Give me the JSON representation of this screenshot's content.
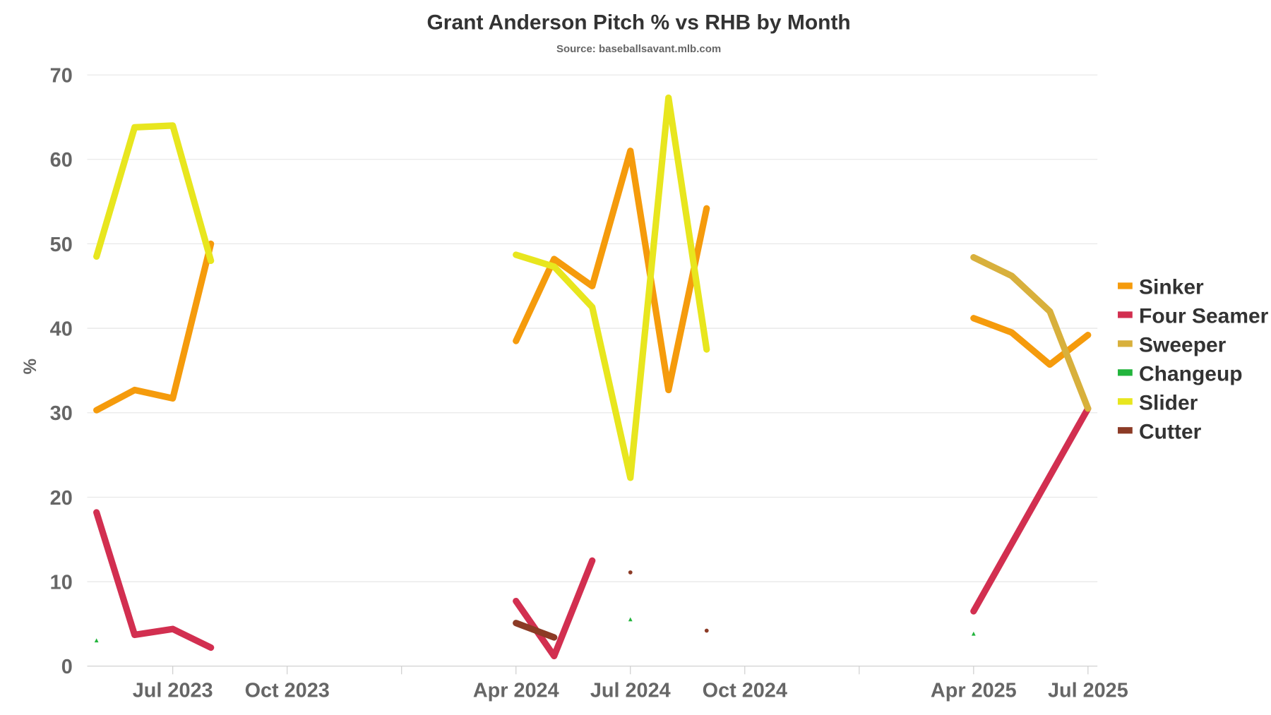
{
  "chart_data": {
    "type": "line",
    "title": "Grant Anderson Pitch % vs RHB by Month",
    "subtitle": "Source: baseballsavant.mlb.com",
    "ylabel": "%",
    "xlabel": "",
    "ylim": [
      0,
      70
    ],
    "yticks": [
      "0",
      "10",
      "20",
      "30",
      "40",
      "50",
      "60",
      "70"
    ],
    "xticks": [
      {
        "date": "2023-07",
        "label": "Jul 2023"
      },
      {
        "date": "2023-10",
        "label": "Oct 2023"
      },
      {
        "date": "2024-04",
        "label": "Apr 2024"
      },
      {
        "date": "2024-07",
        "label": "Jul 2024"
      },
      {
        "date": "2024-10",
        "label": "Oct 2024"
      },
      {
        "date": "2025-04",
        "label": "Apr 2025"
      },
      {
        "date": "2025-07",
        "label": "Jul 2025"
      }
    ],
    "year_ticks": [
      "2024-01",
      "2025-01"
    ],
    "grid": true,
    "legend": "right",
    "series": [
      {
        "name": "Sinker",
        "color": "#f59b0c",
        "points": [
          [
            "2023-05",
            30.3
          ],
          [
            "2023-06",
            32.7
          ],
          [
            "2023-07",
            31.7
          ],
          [
            "2023-08",
            50.0
          ],
          [
            "2024-04",
            38.5
          ],
          [
            "2024-05",
            48.2
          ],
          [
            "2024-06",
            45.0
          ],
          [
            "2024-07",
            61.0
          ],
          [
            "2024-08",
            32.7
          ],
          [
            "2024-09",
            54.2
          ],
          [
            "2025-04",
            41.2
          ],
          [
            "2025-05",
            39.5
          ],
          [
            "2025-06",
            35.7
          ],
          [
            "2025-07",
            39.2
          ]
        ]
      },
      {
        "name": "Four Seamer",
        "color": "#d22f50",
        "points": [
          [
            "2023-05",
            18.2
          ],
          [
            "2023-06",
            3.7
          ],
          [
            "2023-07",
            4.4
          ],
          [
            "2023-08",
            2.2
          ],
          [
            "2024-04",
            7.7
          ],
          [
            "2024-05",
            1.2
          ],
          [
            "2024-06",
            12.5
          ],
          [
            "2025-04",
            6.5
          ],
          [
            "2025-05",
            14.5
          ],
          [
            "2025-06",
            22.5
          ],
          [
            "2025-07",
            30.5
          ]
        ]
      },
      {
        "name": "Sweeper",
        "color": "#d8b03c",
        "points": [
          [
            "2025-04",
            48.4
          ],
          [
            "2025-05",
            46.2
          ],
          [
            "2025-06",
            42.0
          ],
          [
            "2025-07",
            30.5
          ]
        ]
      },
      {
        "name": "Changeup",
        "color": "#22b43c",
        "points": [
          [
            "2023-05",
            3.0
          ],
          [
            "2024-07",
            5.5
          ],
          [
            "2025-04",
            3.8
          ]
        ]
      },
      {
        "name": "Slider",
        "color": "#e8e61e",
        "points": [
          [
            "2023-05",
            48.5
          ],
          [
            "2023-06",
            63.8
          ],
          [
            "2023-07",
            64.0
          ],
          [
            "2023-08",
            48.0
          ],
          [
            "2024-04",
            48.7
          ],
          [
            "2024-05",
            47.3
          ],
          [
            "2024-06",
            42.5
          ],
          [
            "2024-07",
            22.3
          ],
          [
            "2024-08",
            67.3
          ],
          [
            "2024-09",
            37.5
          ]
        ]
      },
      {
        "name": "Cutter",
        "color": "#8c3b26",
        "points": [
          [
            "2024-04",
            5.1
          ],
          [
            "2024-05",
            3.4
          ],
          [
            "2024-07",
            11.1
          ],
          [
            "2024-09",
            4.2
          ]
        ]
      }
    ]
  }
}
